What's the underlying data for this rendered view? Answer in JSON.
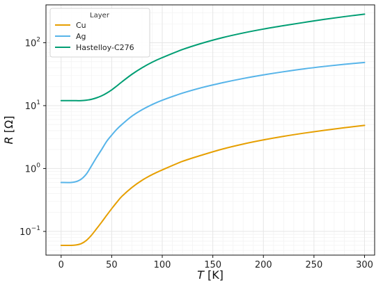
{
  "chart_data": {
    "type": "line",
    "xlabel": {
      "var": "T",
      "unit": " [K]"
    },
    "ylabel": {
      "var": "R",
      "unit": " [Ω]"
    },
    "xlim": [
      -15,
      310
    ],
    "ylim": [
      0.042,
      400
    ],
    "yscale": "log",
    "grid": true,
    "legend": {
      "title": "Layer",
      "placement": "top-left"
    },
    "x_ticks": [
      0,
      50,
      100,
      150,
      200,
      250,
      300
    ],
    "y_ticks": [
      {
        "value": 0.1,
        "base": "10",
        "exp": "−1"
      },
      {
        "value": 1,
        "base": "10",
        "exp": "0"
      },
      {
        "value": 10,
        "base": "10",
        "exp": "1"
      },
      {
        "value": 100,
        "base": "10",
        "exp": "2"
      }
    ],
    "x": [
      0,
      10,
      15,
      20,
      25,
      30,
      35,
      40,
      45,
      50,
      55,
      60,
      70,
      80,
      90,
      100,
      120,
      140,
      160,
      180,
      200,
      220,
      240,
      260,
      280,
      300
    ],
    "series": [
      {
        "name": "Cu",
        "color": "#E69F00",
        "values": [
          0.06,
          0.06,
          0.061,
          0.064,
          0.072,
          0.087,
          0.11,
          0.14,
          0.18,
          0.23,
          0.29,
          0.36,
          0.5,
          0.65,
          0.8,
          0.95,
          1.3,
          1.65,
          2.05,
          2.45,
          2.85,
          3.25,
          3.65,
          4.05,
          4.45,
          4.85
        ]
      },
      {
        "name": "Ag",
        "color": "#56B4E9",
        "values": [
          0.6,
          0.6,
          0.62,
          0.68,
          0.82,
          1.1,
          1.5,
          2.0,
          2.7,
          3.4,
          4.2,
          5.0,
          6.8,
          8.6,
          10.4,
          12.2,
          15.8,
          19.5,
          23.2,
          27.0,
          30.8,
          34.6,
          38.4,
          42.0,
          45.4,
          48.5
        ]
      },
      {
        "name": "Hastelloy-C276",
        "color": "#009E73",
        "values": [
          12,
          12,
          12,
          12,
          12.2,
          12.6,
          13.3,
          14.3,
          15.8,
          17.8,
          20.5,
          23.8,
          31.5,
          40,
          49,
          58,
          78,
          99,
          121,
          143,
          165,
          187,
          210,
          235,
          260,
          285
        ]
      }
    ]
  }
}
